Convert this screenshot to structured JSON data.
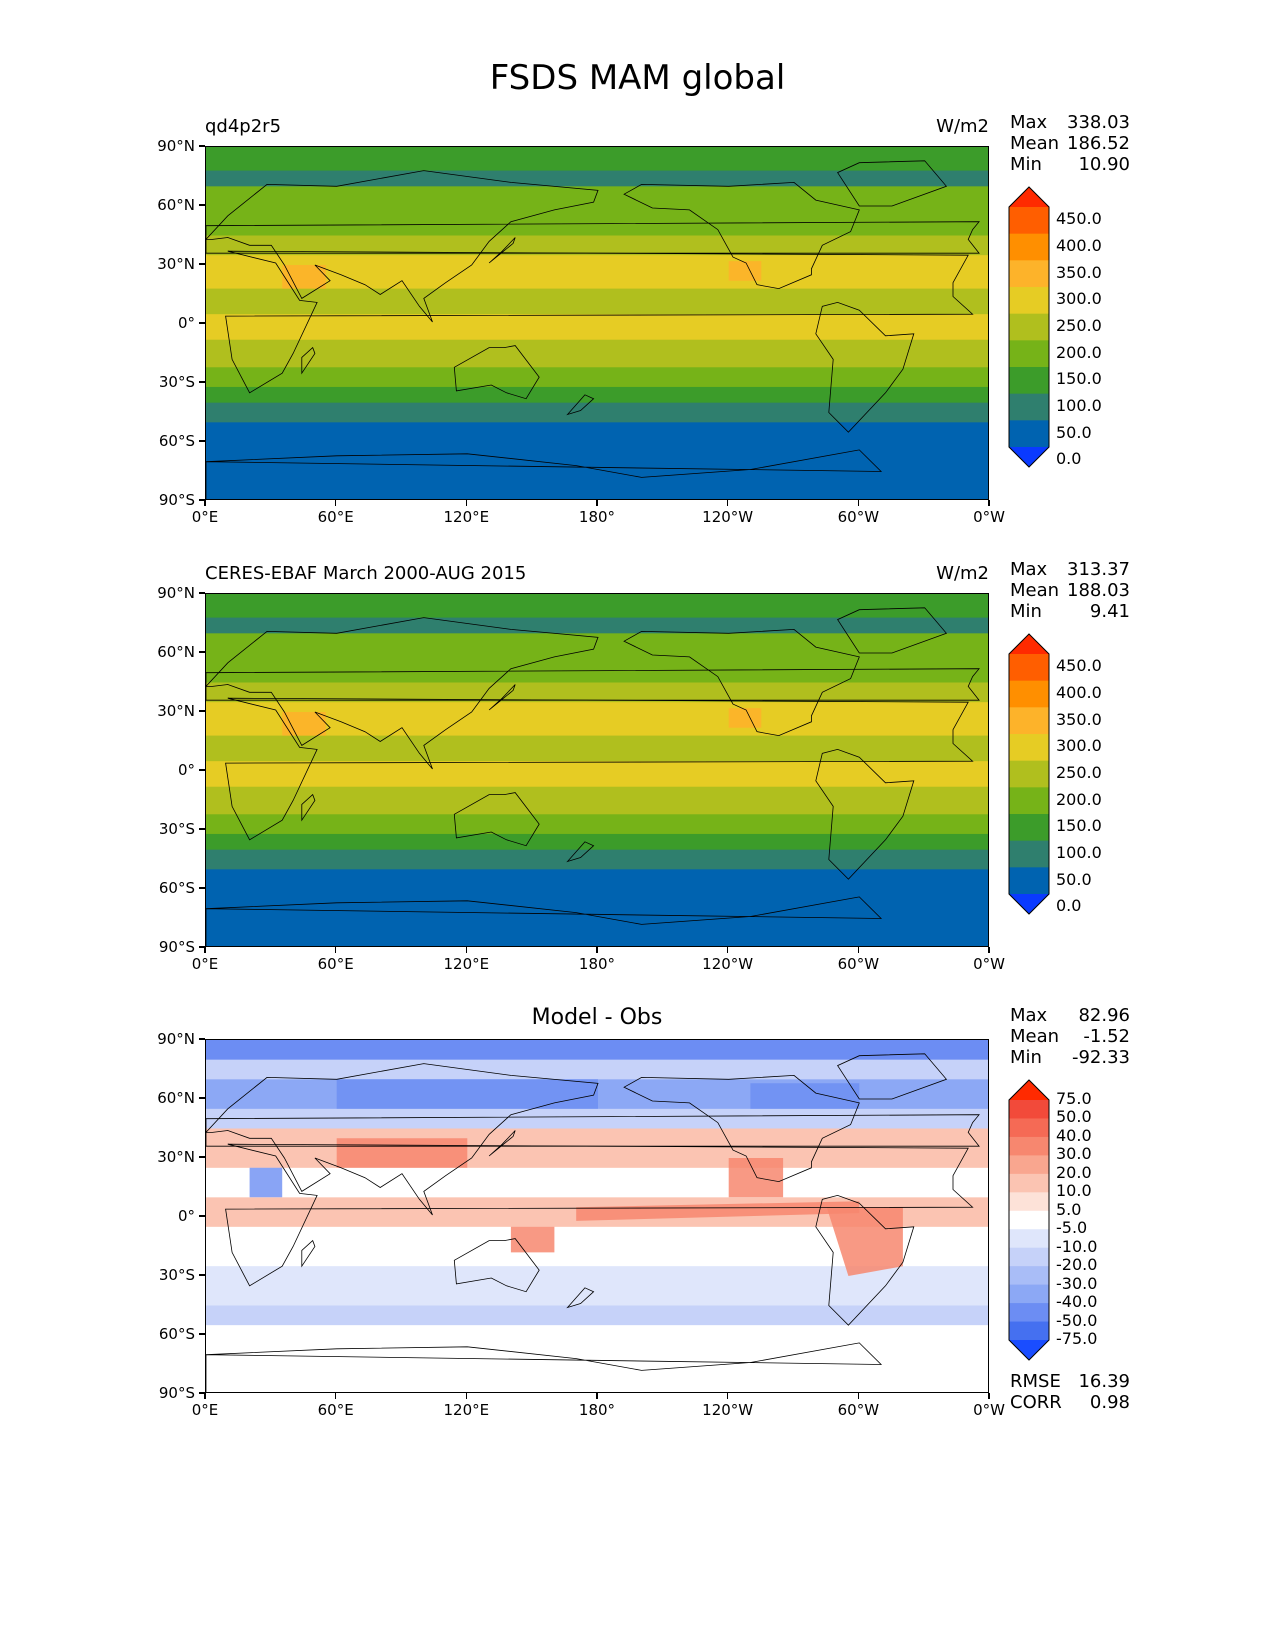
{
  "suptitle": "FSDS MAM global",
  "axis_ticks": {
    "lat": [
      "90°N",
      "60°N",
      "30°N",
      "0°",
      "30°S",
      "60°S",
      "90°S"
    ],
    "lon": [
      "0°E",
      "60°E",
      "120°E",
      "180°",
      "120°W",
      "60°W",
      "0°W"
    ]
  },
  "panels": [
    {
      "id": "model",
      "title_left": "qd4p2r5",
      "title_right": "W/m2",
      "title_center": "",
      "stats": [
        {
          "label": "Max",
          "value": "338.03"
        },
        {
          "label": "Mean",
          "value": "186.52"
        },
        {
          "label": "Min",
          "value": "10.90"
        }
      ],
      "colorbar": {
        "labels": [
          "450.0",
          "400.0",
          "350.0",
          "300.0",
          "250.0",
          "200.0",
          "150.0",
          "100.0",
          "50.0",
          "0.0"
        ],
        "colors": [
          "#ff2a00",
          "#ff5e00",
          "#ff8f00",
          "#fdb32a",
          "#e6cc24",
          "#b0bf1e",
          "#76b318",
          "#3c9c2a",
          "#2f7f6e",
          "#0063b0",
          "#0a3aff"
        ]
      }
    },
    {
      "id": "obs",
      "title_left": "CERES-EBAF March 2000-AUG 2015",
      "title_right": "W/m2",
      "title_center": "",
      "stats": [
        {
          "label": "Max",
          "value": "313.37"
        },
        {
          "label": "Mean",
          "value": "188.03"
        },
        {
          "label": "Min",
          "value": "9.41"
        }
      ],
      "colorbar": {
        "labels": [
          "450.0",
          "400.0",
          "350.0",
          "300.0",
          "250.0",
          "200.0",
          "150.0",
          "100.0",
          "50.0",
          "0.0"
        ],
        "colors": [
          "#ff2a00",
          "#ff5e00",
          "#ff8f00",
          "#fdb32a",
          "#e6cc24",
          "#b0bf1e",
          "#76b318",
          "#3c9c2a",
          "#2f7f6e",
          "#0063b0",
          "#0a3aff"
        ]
      }
    },
    {
      "id": "diff",
      "title_left": "",
      "title_right": "",
      "title_center": "Model - Obs",
      "stats": [
        {
          "label": "Max",
          "value": "82.96"
        },
        {
          "label": "Mean",
          "value": "-1.52"
        },
        {
          "label": "Min",
          "value": "-92.33"
        }
      ],
      "stats_bottom": [
        {
          "label": "RMSE",
          "value": "16.39"
        },
        {
          "label": "CORR",
          "value": "0.98"
        }
      ],
      "colorbar": {
        "labels": [
          "75.0",
          "50.0",
          "40.0",
          "30.0",
          "20.0",
          "10.0",
          "5.0",
          "-5.0",
          "-10.0",
          "-20.0",
          "-30.0",
          "-40.0",
          "-50.0",
          "-75.0"
        ],
        "colors": [
          "#ff2a00",
          "#f24a3a",
          "#f56a55",
          "#f7876f",
          "#f9a68f",
          "#fbc4b2",
          "#fde2d8",
          "#ffffff",
          "#dfe6fb",
          "#c6d2f9",
          "#a9bdf7",
          "#8ca8f5",
          "#6c8df3",
          "#4570f0",
          "#1a4dff"
        ]
      }
    }
  ]
}
